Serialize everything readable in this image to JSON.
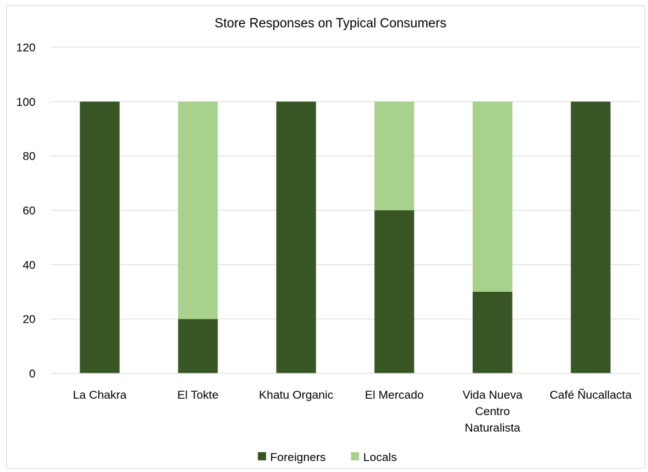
{
  "chart_data": {
    "type": "bar",
    "stacked": true,
    "title": "Store Responses on Typical Consumers",
    "xlabel": "",
    "ylabel": "",
    "ylim": [
      0,
      120
    ],
    "yticks": [
      0,
      20,
      40,
      60,
      80,
      100,
      120
    ],
    "grid": true,
    "legend_position": "bottom",
    "categories": [
      [
        "La Chakra"
      ],
      [
        "El Tokte"
      ],
      [
        "Khatu Organic"
      ],
      [
        "El Mercado"
      ],
      [
        "Vida Nueva",
        "Centro",
        "Naturalista"
      ],
      [
        "Café Ñucallacta"
      ]
    ],
    "series": [
      {
        "name": "Foreigners",
        "color": "#375623",
        "values": [
          100,
          20,
          100,
          60,
          30,
          100
        ]
      },
      {
        "name": "Locals",
        "color": "#a9d18e",
        "values": [
          0,
          80,
          0,
          40,
          70,
          0
        ]
      }
    ]
  }
}
